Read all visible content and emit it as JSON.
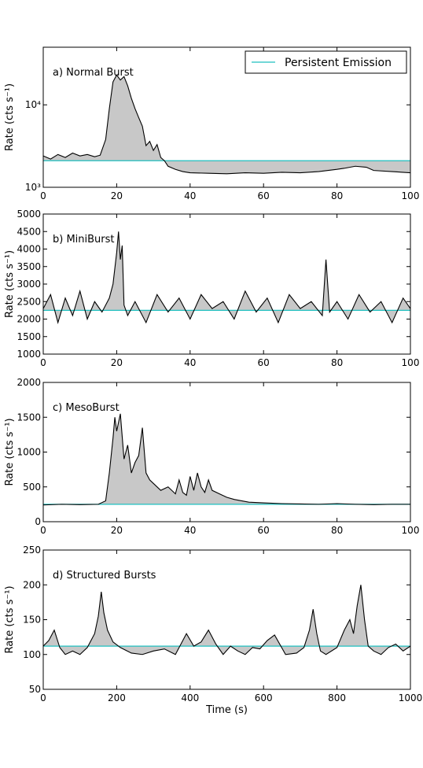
{
  "legend": {
    "label": "Persistent Emission"
  },
  "colors": {
    "persistent": "#1fbfbf",
    "fill": "#c8c8c8",
    "line": "#000000"
  },
  "shared_xlabel": "Time (s)",
  "chart_data": [
    {
      "type": "line",
      "panel": "a) Normal Burst",
      "ylabel": "Rate (cts s⁻¹)",
      "yscale": "log",
      "xlim": [
        0,
        100
      ],
      "ylim": [
        1000,
        50000
      ],
      "xticks": [
        "0",
        "20",
        "40",
        "60",
        "80",
        "100"
      ],
      "yticks": [
        {
          "value": 1000,
          "label": "10³"
        },
        {
          "value": 10000,
          "label": "10⁴"
        }
      ],
      "persistent": 2100,
      "legend_position": "top-right",
      "series": [
        {
          "x": [
            0,
            2,
            4,
            6,
            8,
            10,
            12,
            14,
            15.5,
            17,
            18,
            19,
            20,
            21,
            22,
            23,
            24,
            25,
            26,
            27,
            28,
            29,
            30,
            31,
            32,
            33,
            34,
            36,
            38,
            40,
            45,
            50,
            55,
            60,
            65,
            70,
            75,
            80,
            82,
            85,
            88,
            90,
            95,
            100
          ],
          "y": [
            2400,
            2200,
            2500,
            2300,
            2600,
            2400,
            2500,
            2350,
            2450,
            3800,
            9000,
            19000,
            23000,
            20000,
            22000,
            17000,
            12000,
            9000,
            7000,
            5500,
            3200,
            3600,
            2800,
            3300,
            2300,
            2100,
            1800,
            1650,
            1550,
            1500,
            1480,
            1460,
            1500,
            1480,
            1520,
            1500,
            1550,
            1650,
            1700,
            1800,
            1750,
            1600,
            1550,
            1500
          ]
        }
      ]
    },
    {
      "type": "line",
      "panel": "b) MiniBurst",
      "ylabel": "Rate (cts s⁻¹)",
      "yscale": "linear",
      "xlim": [
        0,
        100
      ],
      "ylim": [
        1000,
        5000
      ],
      "xticks": [
        "0",
        "20",
        "40",
        "60",
        "80",
        "100"
      ],
      "yticks": [
        {
          "value": 1000,
          "label": "1000"
        },
        {
          "value": 1500,
          "label": "1500"
        },
        {
          "value": 2000,
          "label": "2000"
        },
        {
          "value": 2500,
          "label": "2500"
        },
        {
          "value": 3000,
          "label": "3000"
        },
        {
          "value": 3500,
          "label": "3500"
        },
        {
          "value": 4000,
          "label": "4000"
        },
        {
          "value": 4500,
          "label": "4500"
        },
        {
          "value": 5000,
          "label": "5000"
        }
      ],
      "persistent": 2250,
      "series": [
        {
          "x": [
            0,
            2,
            4,
            6,
            8,
            10,
            12,
            14,
            16,
            18,
            19,
            20,
            20.5,
            21,
            21.5,
            22,
            23,
            25,
            28,
            31,
            34,
            37,
            40,
            43,
            46,
            49,
            52,
            55,
            58,
            61,
            64,
            67,
            70,
            73,
            76,
            77,
            78,
            80,
            83,
            86,
            89,
            92,
            95,
            98,
            100
          ],
          "y": [
            2300,
            2700,
            1900,
            2600,
            2100,
            2800,
            2000,
            2500,
            2200,
            2600,
            3000,
            3900,
            4500,
            3700,
            4100,
            2400,
            2100,
            2500,
            1900,
            2700,
            2200,
            2600,
            2000,
            2700,
            2300,
            2500,
            2000,
            2800,
            2200,
            2600,
            1900,
            2700,
            2300,
            2500,
            2100,
            3700,
            2200,
            2500,
            2000,
            2700,
            2200,
            2500,
            1900,
            2600,
            2300
          ]
        }
      ]
    },
    {
      "type": "line",
      "panel": "c) MesoBurst",
      "ylabel": "Rate (cts s⁻¹)",
      "yscale": "linear",
      "xlim": [
        0,
        100
      ],
      "ylim": [
        0,
        2000
      ],
      "xticks": [
        "0",
        "20",
        "40",
        "60",
        "80",
        "100"
      ],
      "yticks": [
        {
          "value": 0,
          "label": "0"
        },
        {
          "value": 500,
          "label": "500"
        },
        {
          "value": 1000,
          "label": "1000"
        },
        {
          "value": 1500,
          "label": "1500"
        },
        {
          "value": 2000,
          "label": "2000"
        }
      ],
      "persistent": 250,
      "series": [
        {
          "x": [
            0,
            5,
            10,
            15,
            17,
            18,
            19,
            19.5,
            20,
            21,
            22,
            23,
            24,
            25,
            26,
            27,
            28,
            29,
            30,
            32,
            34,
            36,
            37,
            38,
            39,
            40,
            41,
            42,
            43,
            44,
            45,
            46,
            48,
            50,
            52,
            54,
            56,
            60,
            65,
            70,
            75,
            80,
            85,
            90,
            95,
            100
          ],
          "y": [
            240,
            250,
            245,
            250,
            300,
            700,
            1200,
            1500,
            1300,
            1550,
            900,
            1100,
            700,
            850,
            950,
            1350,
            700,
            600,
            550,
            450,
            500,
            400,
            600,
            420,
            380,
            650,
            450,
            700,
            500,
            420,
            600,
            450,
            400,
            350,
            320,
            300,
            280,
            270,
            260,
            255,
            250,
            260,
            250,
            245,
            250,
            250
          ]
        }
      ]
    },
    {
      "type": "line",
      "panel": "d) Structured Bursts",
      "ylabel": "Rate (cts s⁻¹)",
      "xlabel": "Time (s)",
      "yscale": "linear",
      "xlim": [
        0,
        1000
      ],
      "ylim": [
        50,
        250
      ],
      "xticks": [
        "0",
        "200",
        "400",
        "600",
        "800",
        "1000"
      ],
      "yticks": [
        {
          "value": 50,
          "label": "50"
        },
        {
          "value": 100,
          "label": "100"
        },
        {
          "value": 150,
          "label": "150"
        },
        {
          "value": 200,
          "label": "200"
        },
        {
          "value": 250,
          "label": "250"
        }
      ],
      "persistent": 112,
      "series": [
        {
          "x": [
            0,
            15,
            30,
            45,
            60,
            80,
            100,
            120,
            140,
            150,
            158,
            165,
            175,
            190,
            210,
            240,
            270,
            300,
            330,
            360,
            390,
            410,
            430,
            450,
            470,
            490,
            510,
            530,
            550,
            570,
            590,
            610,
            630,
            660,
            690,
            710,
            725,
            735,
            745,
            755,
            770,
            800,
            820,
            835,
            845,
            855,
            865,
            875,
            885,
            900,
            920,
            940,
            960,
            980,
            1000
          ],
          "y": [
            112,
            120,
            135,
            110,
            100,
            105,
            100,
            110,
            130,
            155,
            190,
            160,
            135,
            118,
            110,
            102,
            100,
            105,
            108,
            100,
            130,
            112,
            118,
            135,
            115,
            100,
            112,
            105,
            100,
            110,
            108,
            120,
            128,
            100,
            102,
            110,
            135,
            165,
            130,
            105,
            100,
            110,
            135,
            150,
            130,
            170,
            200,
            150,
            112,
            105,
            100,
            110,
            115,
            105,
            112
          ]
        }
      ]
    }
  ]
}
